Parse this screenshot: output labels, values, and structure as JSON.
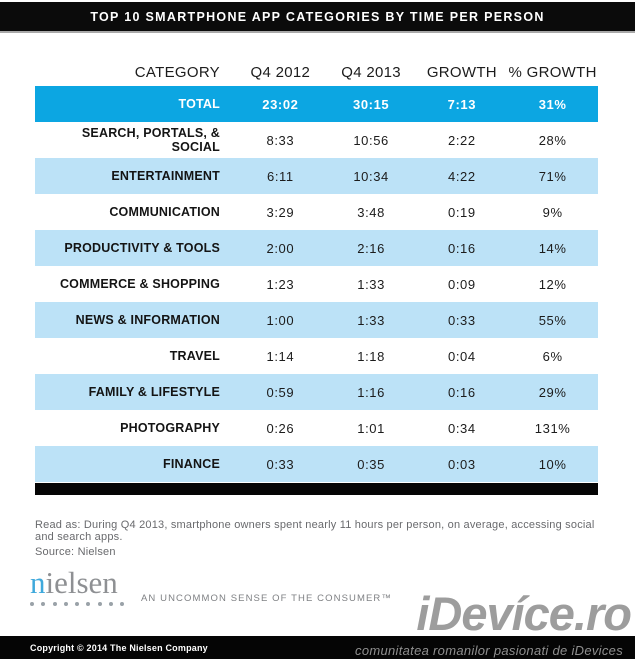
{
  "header": {
    "title": "TOP 10 SMARTPHONE APP CATEGORIES BY TIME PER PERSON"
  },
  "chart_data": {
    "type": "table",
    "title": "TOP 10 SMARTPHONE APP CATEGORIES BY TIME PER PERSON",
    "columns": [
      "CATEGORY",
      "Q4 2012",
      "Q4 2013",
      "GROWTH",
      "% GROWTH"
    ],
    "rows": [
      [
        "TOTAL",
        "23:02",
        "30:15",
        "7:13",
        "31%"
      ],
      [
        "SEARCH, PORTALS, & SOCIAL",
        "8:33",
        "10:56",
        "2:22",
        "28%"
      ],
      [
        "ENTERTAINMENT",
        "6:11",
        "10:34",
        "4:22",
        "71%"
      ],
      [
        "COMMUNICATION",
        "3:29",
        "3:48",
        "0:19",
        "9%"
      ],
      [
        "PRODUCTIVITY & TOOLS",
        "2:00",
        "2:16",
        "0:16",
        "14%"
      ],
      [
        "COMMERCE & SHOPPING",
        "1:23",
        "1:33",
        "0:09",
        "12%"
      ],
      [
        "NEWS & INFORMATION",
        "1:00",
        "1:33",
        "0:33",
        "55%"
      ],
      [
        "TRAVEL",
        "1:14",
        "1:18",
        "0:04",
        "6%"
      ],
      [
        "FAMILY & LIFESTYLE",
        "0:59",
        "1:16",
        "0:16",
        "29%"
      ],
      [
        "PHOTOGRAPHY",
        "0:26",
        "1:01",
        "0:34",
        "131%"
      ],
      [
        "FINANCE",
        "0:33",
        "0:35",
        "0:03",
        "10%"
      ]
    ],
    "layout_hints": {
      "total_row_highlight": "#0CA6E2",
      "alternating_row_color": "#BCE2F7",
      "category_alignment": "right",
      "value_alignment": "center"
    }
  },
  "footnotes": {
    "read_as": "Read as: During Q4 2013, smartphone owners spent nearly 11 hours per person, on average, accessing social and search apps.",
    "source": "Source: Nielsen"
  },
  "branding": {
    "wordmark_first_letter": "n",
    "wordmark_rest": "ielsen",
    "tagline": "AN UNCOMMON SENSE OF THE CONSUMER™"
  },
  "watermark": {
    "logo_text": "iDevíce.ro",
    "subtitle": "comunitatea romanilor pasionati de iDevices"
  },
  "footer": {
    "copyright": "Copyright © 2014 The Nielsen Company"
  },
  "colors": {
    "accent_blue": "#0CA6E2",
    "row_alt_blue": "#BCE2F7",
    "bar_black": "#050505",
    "nielsen_blue": "#3FA9DC",
    "nielsen_gray": "#8E9093",
    "footnote_gray": "#696a6d",
    "watermark_gray": "#9d9d9d"
  }
}
